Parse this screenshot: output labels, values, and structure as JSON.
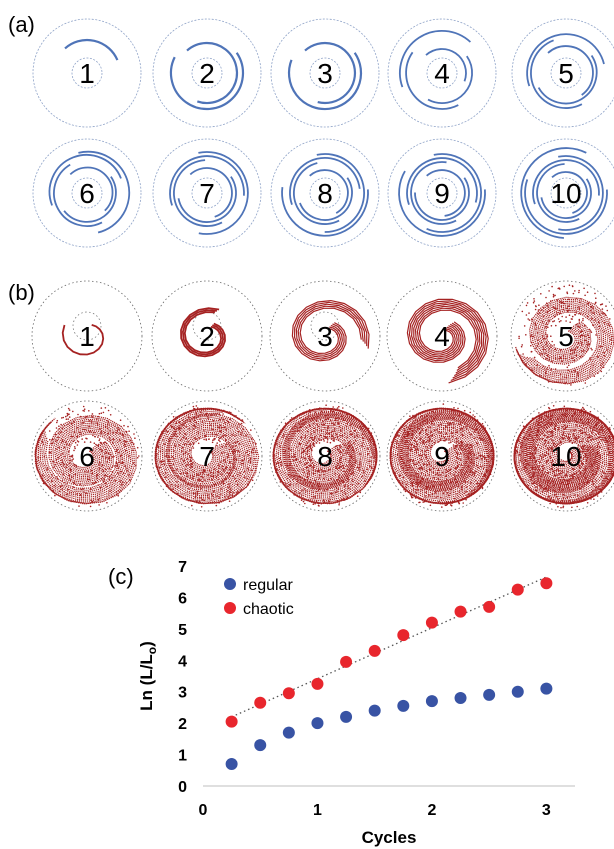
{
  "panels": {
    "a": {
      "label": "(a)",
      "color": "#4f74b8",
      "numbers": [
        "1",
        "2",
        "3",
        "4",
        "5",
        "6",
        "7",
        "8",
        "9",
        "10"
      ]
    },
    "b": {
      "label": "(b)",
      "color": "#a52222",
      "numbers": [
        "1",
        "2",
        "3",
        "4",
        "5",
        "6",
        "7",
        "8",
        "9",
        "10"
      ]
    },
    "c": {
      "label": "(c)"
    }
  },
  "chart_data": {
    "type": "scatter",
    "title": "",
    "xlabel": "Cycles",
    "ylabel": "Ln (L/L",
    "ylabel_subscript": "o",
    "ylabel_suffix": ")",
    "xlim": [
      0,
      3.25
    ],
    "ylim": [
      0,
      7
    ],
    "xticks": [
      "0",
      "1",
      "2",
      "3"
    ],
    "yticks": [
      "0",
      "1",
      "2",
      "3",
      "4",
      "5",
      "6",
      "7"
    ],
    "grid": false,
    "legend_position": "top-left",
    "series": [
      {
        "name": "regular",
        "color": "#3853a4",
        "x": [
          0.25,
          0.5,
          0.75,
          1.0,
          1.25,
          1.5,
          1.75,
          2.0,
          2.25,
          2.5,
          2.75,
          3.0
        ],
        "y": [
          0.7,
          1.3,
          1.7,
          2.0,
          2.2,
          2.4,
          2.55,
          2.7,
          2.8,
          2.9,
          3.0,
          3.1
        ]
      },
      {
        "name": "chaotic",
        "color": "#e8262d",
        "x": [
          0.25,
          0.5,
          0.75,
          1.0,
          1.25,
          1.5,
          1.75,
          2.0,
          2.25,
          2.5,
          2.75,
          3.0
        ],
        "y": [
          2.05,
          2.65,
          2.95,
          3.25,
          3.95,
          4.3,
          4.8,
          5.2,
          5.55,
          5.7,
          6.25,
          6.45
        ]
      }
    ],
    "trendline": {
      "series": "chaotic",
      "style": "dotted",
      "color": "#555555"
    }
  }
}
